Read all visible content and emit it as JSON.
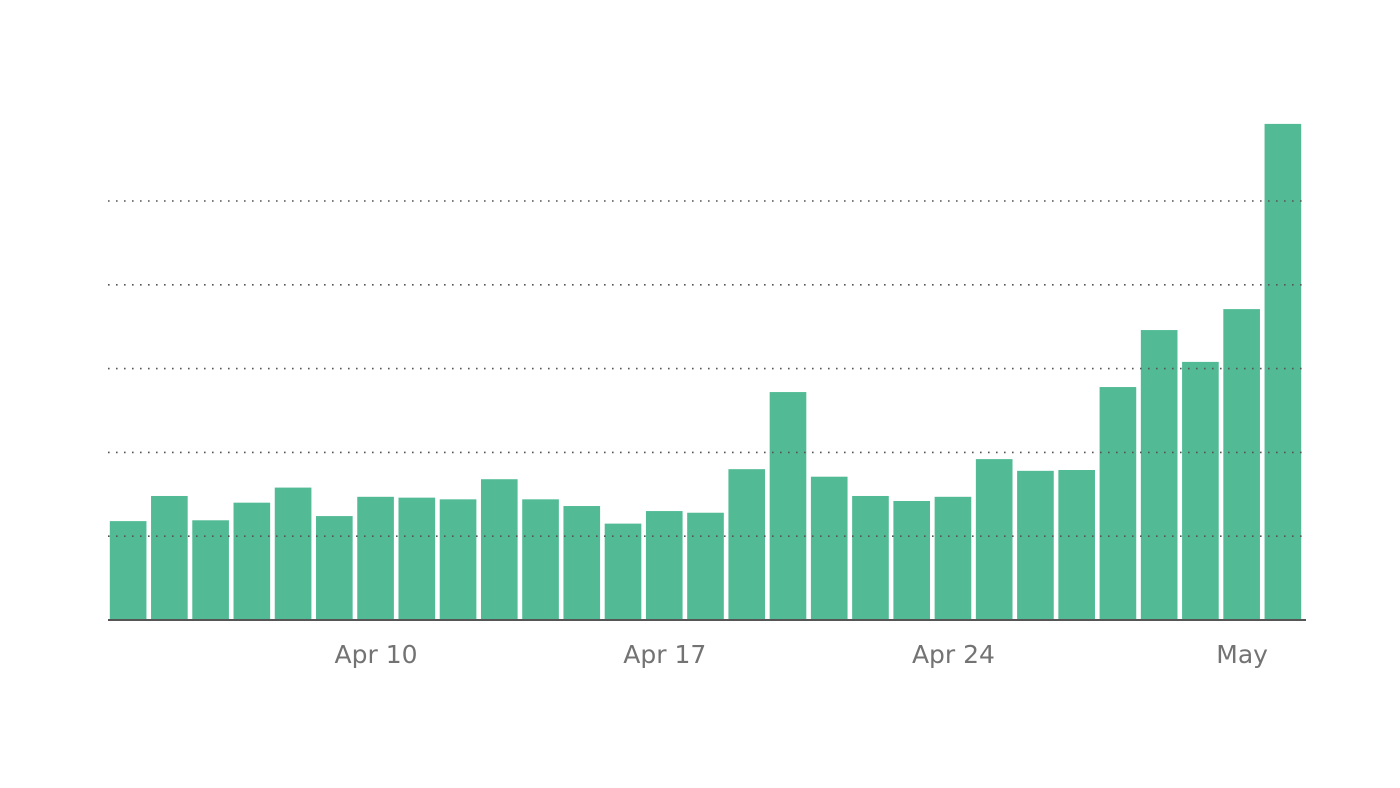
{
  "chart_data": {
    "type": "bar",
    "categories": [
      null,
      null,
      null,
      null,
      null,
      null,
      "Apr 10",
      null,
      null,
      null,
      null,
      null,
      null,
      "Apr 17",
      null,
      null,
      null,
      null,
      null,
      null,
      "Apr 24",
      null,
      null,
      null,
      null,
      null,
      null,
      "May",
      null
    ],
    "values": [
      1.18,
      1.48,
      1.19,
      1.4,
      1.58,
      1.24,
      1.47,
      1.46,
      1.44,
      1.68,
      1.44,
      1.36,
      1.15,
      1.3,
      1.28,
      1.8,
      2.72,
      1.71,
      1.48,
      1.42,
      1.47,
      1.92,
      1.78,
      1.79,
      2.78,
      3.46,
      3.08,
      3.71,
      5.92
    ],
    "color": "#52bb95",
    "ylim": [
      0,
      6
    ],
    "grid_lines": [
      1,
      2,
      3,
      4,
      5
    ],
    "grid": true
  }
}
